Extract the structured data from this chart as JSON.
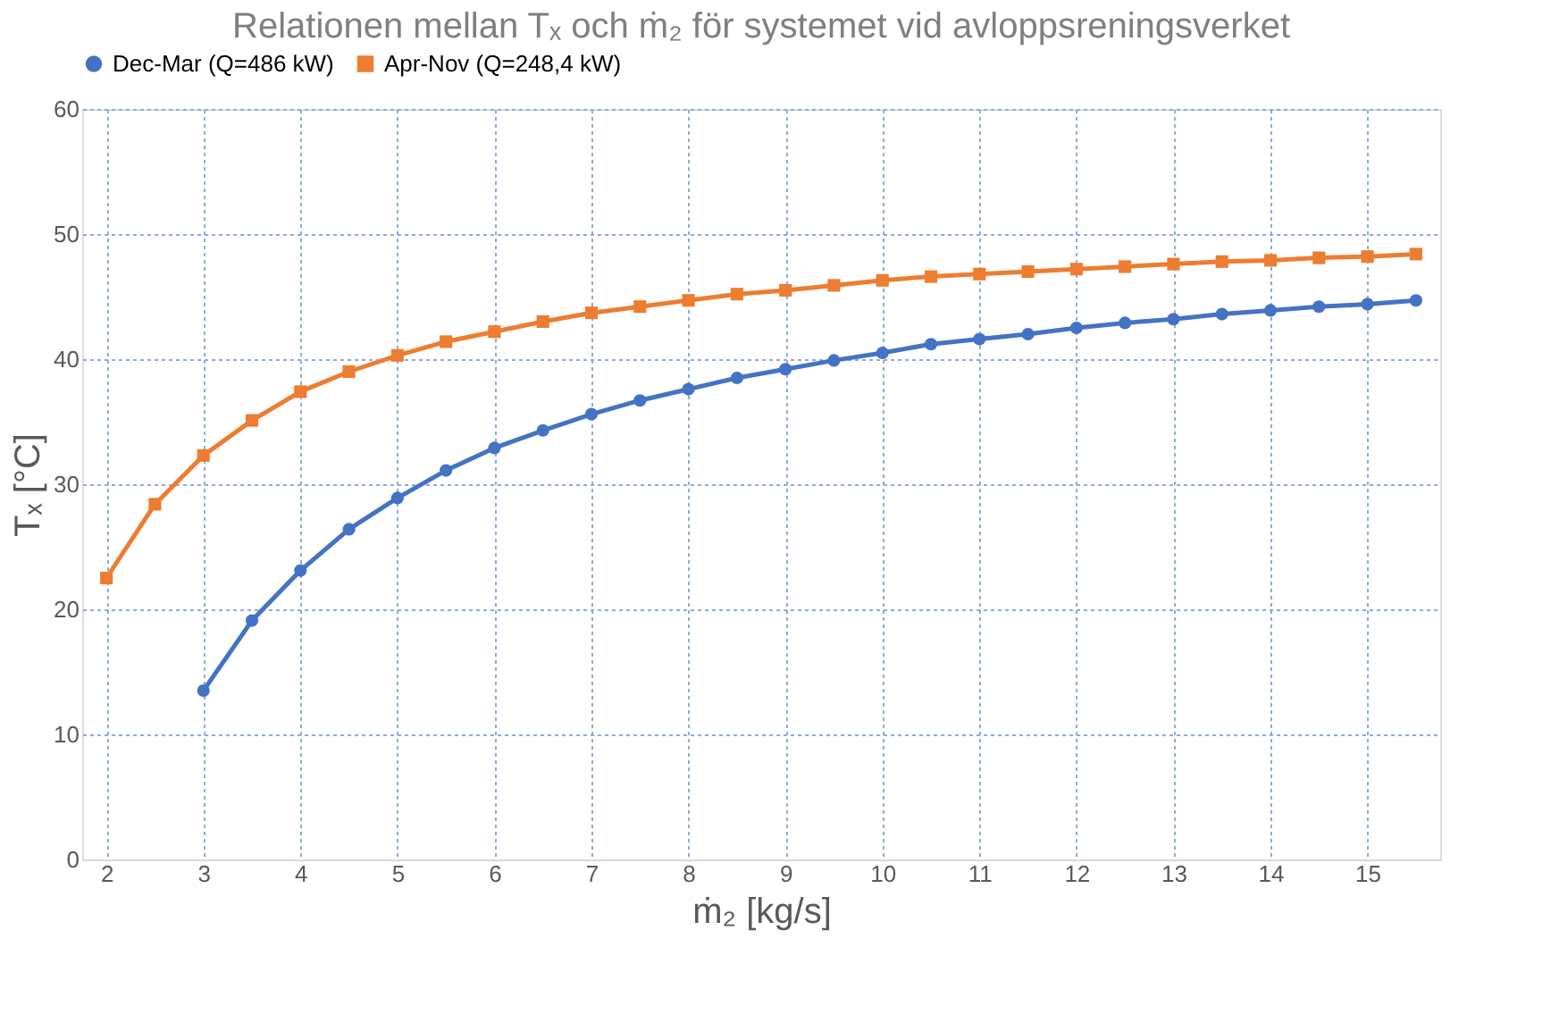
{
  "chart_data": {
    "type": "line",
    "title": "Relationen mellan Tₓ och ṁ₂ för systemet vid avloppsreningsverket",
    "xlabel": "ṁ₂ [kg/s]",
    "ylabel": "Tₓ [°C]",
    "xlim": [
      1.75,
      15.75
    ],
    "xticks": [
      2,
      3,
      4,
      5,
      6,
      7,
      8,
      9,
      10,
      11,
      12,
      13,
      14,
      15
    ],
    "ylim": [
      0,
      60
    ],
    "yticks": [
      0,
      10,
      20,
      30,
      40,
      50,
      60
    ],
    "grid": true,
    "legend": "top",
    "series": [
      {
        "name": "Dec-Mar (Q=486 kW)",
        "color": "#4472c4",
        "marker": "circle",
        "x": [
          3,
          3.5,
          4,
          4.5,
          5,
          5.5,
          6,
          6.5,
          7,
          7.5,
          8,
          8.5,
          9,
          9.5,
          10,
          10.5,
          11,
          11.5,
          12,
          12.5,
          13,
          13.5,
          14,
          14.5,
          15,
          15.5
        ],
        "values": [
          13.5,
          19.1,
          23.1,
          26.4,
          28.9,
          31.1,
          32.9,
          34.3,
          35.6,
          36.7,
          37.6,
          38.5,
          39.2,
          39.9,
          40.5,
          41.2,
          41.6,
          42.0,
          42.5,
          42.9,
          43.2,
          43.6,
          43.9,
          44.2,
          44.4,
          44.7
        ]
      },
      {
        "name": "Apr-Nov (Q=248,4 kW)",
        "color": "#ed7d31",
        "marker": "square",
        "x": [
          2,
          2.5,
          3,
          3.5,
          4,
          4.5,
          5,
          5.5,
          6,
          6.5,
          7,
          7.5,
          8,
          8.5,
          9,
          9.5,
          10,
          10.5,
          11,
          11.5,
          12,
          12.5,
          13,
          13.5,
          14,
          14.5,
          15,
          15.5
        ],
        "values": [
          22.5,
          28.4,
          32.3,
          35.1,
          37.4,
          39.0,
          40.3,
          41.4,
          42.2,
          43.0,
          43.7,
          44.2,
          44.7,
          45.2,
          45.5,
          45.9,
          46.3,
          46.6,
          46.8,
          47.0,
          47.2,
          47.4,
          47.6,
          47.8,
          47.9,
          48.1,
          48.2,
          48.4
        ]
      }
    ]
  }
}
